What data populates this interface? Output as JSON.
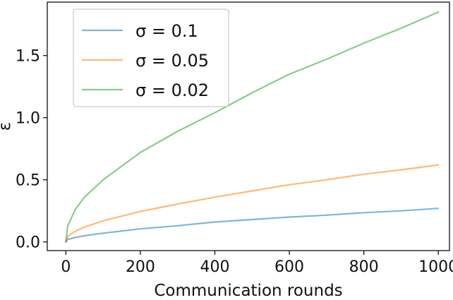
{
  "chart_data": {
    "type": "line",
    "xlabel": "Communication rounds",
    "ylabel": "ε",
    "xlim": [
      -50,
      1030
    ],
    "ylim": [
      -0.07,
      1.93
    ],
    "xticks": [
      0,
      200,
      400,
      600,
      800,
      1000
    ],
    "yticks": [
      0.0,
      0.5,
      1.0,
      1.5
    ],
    "xtick_labels": [
      "0",
      "200",
      "400",
      "600",
      "800",
      "1000"
    ],
    "ytick_labels": [
      "0.0",
      "0.5",
      "1.0",
      "1.5"
    ],
    "grid": false,
    "legend_position": "top-left",
    "x": [
      0,
      5,
      25,
      50,
      100,
      200,
      300,
      400,
      500,
      600,
      700,
      800,
      900,
      1000
    ],
    "series": [
      {
        "name": "σ = 0.1",
        "color": "#1f77b4",
        "values": [
          0.0,
          0.02,
          0.035,
          0.05,
          0.07,
          0.105,
          0.13,
          0.16,
          0.18,
          0.2,
          0.215,
          0.235,
          0.25,
          0.27
        ]
      },
      {
        "name": "σ = 0.05",
        "color": "#ff7f0e",
        "values": [
          0.0,
          0.045,
          0.085,
          0.12,
          0.17,
          0.245,
          0.305,
          0.36,
          0.41,
          0.46,
          0.5,
          0.545,
          0.58,
          0.62
        ]
      },
      {
        "name": "σ = 0.02",
        "color": "#2ca02c",
        "values": [
          0.0,
          0.13,
          0.26,
          0.36,
          0.5,
          0.72,
          0.89,
          1.04,
          1.2,
          1.35,
          1.47,
          1.6,
          1.72,
          1.85
        ]
      }
    ]
  }
}
